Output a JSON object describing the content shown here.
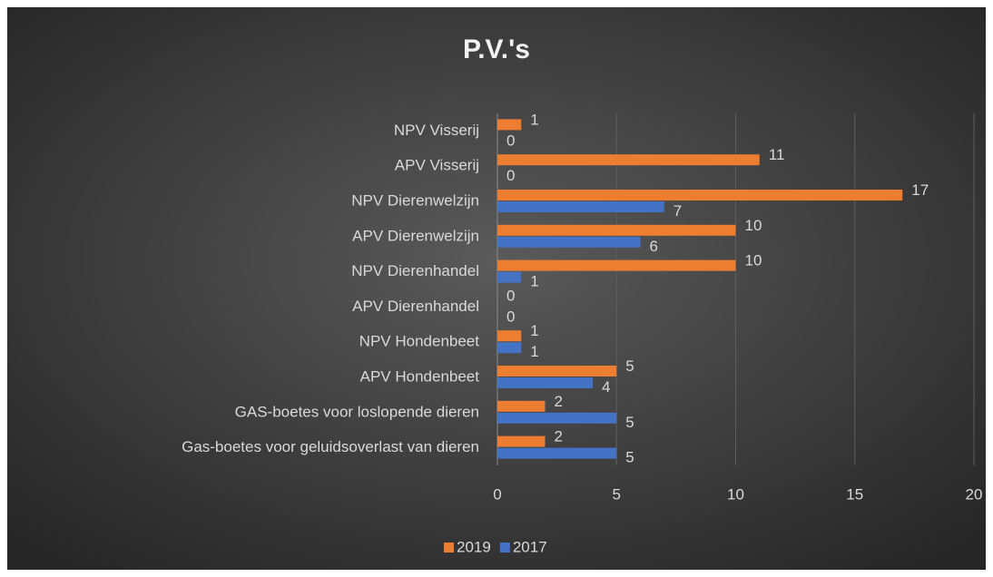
{
  "chart_data": {
    "type": "hbar",
    "title": "P.V.'s",
    "categories": [
      "NPV Visserij",
      "APV Visserij",
      "NPV Dierenwelzijn",
      "APV Dierenwelzijn",
      "NPV Dierenhandel",
      "APV Dierenhandel",
      "NPV Hondenbeet",
      "APV Hondenbeet",
      "GAS-boetes voor loslopende dieren",
      "Gas-boetes voor geluidsoverlast van dieren"
    ],
    "series": [
      {
        "name": "2019",
        "color": "#ed7d31",
        "values": [
          1,
          11,
          17,
          10,
          10,
          0,
          1,
          5,
          2,
          2
        ]
      },
      {
        "name": "2017",
        "color": "#4472c4",
        "values": [
          0,
          0,
          7,
          6,
          1,
          0,
          1,
          4,
          5,
          5
        ]
      }
    ],
    "xlim": [
      0,
      20
    ],
    "xticks": [
      0,
      5,
      10,
      15,
      20
    ],
    "grid": true,
    "legend": "bottom"
  }
}
